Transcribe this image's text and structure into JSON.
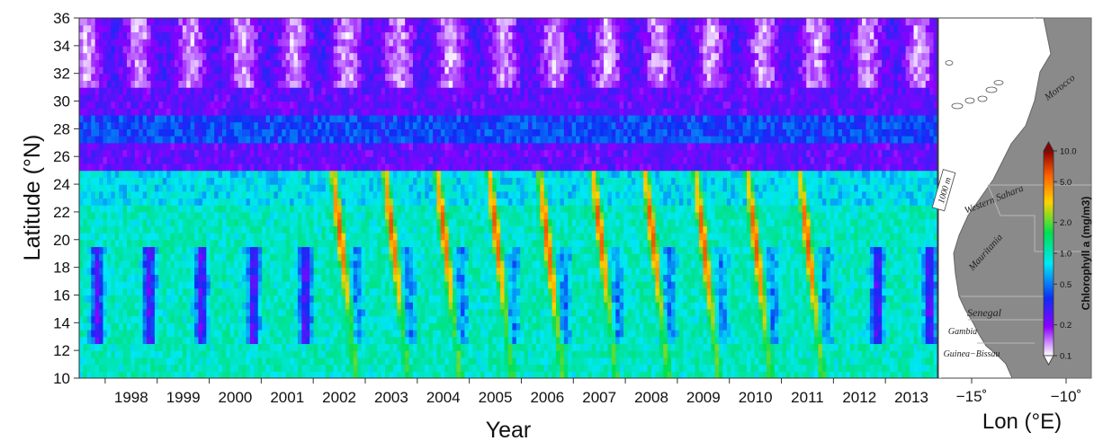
{
  "chart_data": [
    {
      "type": "heatmap",
      "title": "",
      "xlabel": "Year",
      "ylabel": "Latitude (°N)",
      "x_ticks": [
        "1998",
        "1999",
        "2000",
        "2001",
        "2002",
        "2003",
        "2004",
        "2005",
        "2006",
        "2007",
        "2008",
        "2009",
        "2010",
        "2011",
        "2012",
        "2013"
      ],
      "y_ticks": [
        10,
        12,
        14,
        16,
        18,
        20,
        22,
        24,
        26,
        28,
        30,
        32,
        34,
        36
      ],
      "xlim": [
        1997.5,
        2014.0
      ],
      "ylim": [
        10,
        36
      ],
      "color_scale": "log",
      "description_units": "mg/m3",
      "bloom_peak_lat": [
        20,
        18,
        19,
        20,
        21,
        21,
        21,
        21,
        20,
        21,
        21,
        20,
        20,
        20,
        19,
        18
      ]
    },
    {
      "type": "map",
      "xlabel": "Lon (°E)",
      "x_ticks": [
        "−15˚",
        "−10˚"
      ],
      "countries": [
        "Morocco",
        "Western Sahara",
        "Mauritania",
        "Senegal",
        "Gambia",
        "Guinea−Bissau"
      ],
      "isobath_label": "1000 m",
      "colorbar": {
        "label": "Chlorophyll a (mg/m3)",
        "ticks": [
          "10.0",
          "5.0",
          "2.0",
          "1.0",
          "0.5",
          "0.2",
          "0.1"
        ],
        "tick_values": [
          10.0,
          5.0,
          2.0,
          1.0,
          0.5,
          0.2,
          0.1
        ],
        "range": [
          0.1,
          10.0
        ],
        "colors": [
          "#ffffff",
          "#8f00ff",
          "#0d2ef5",
          "#00e8f5",
          "#00e050",
          "#ffd200",
          "#ff6000",
          "#8b0000"
        ]
      }
    }
  ]
}
